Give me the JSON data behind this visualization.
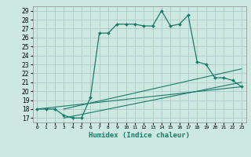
{
  "title": "",
  "xlabel": "Humidex (Indice chaleur)",
  "bg_color": "#cce8e0",
  "grid_color": "#aacccc",
  "line_color": "#1a7a6a",
  "xlim": [
    -0.5,
    23.5
  ],
  "ylim": [
    16.5,
    29.5
  ],
  "yticks": [
    17,
    18,
    19,
    20,
    21,
    22,
    23,
    24,
    25,
    26,
    27,
    28,
    29
  ],
  "xtick_labels": [
    "0",
    "1",
    "2",
    "3",
    "4",
    "5",
    "6",
    "7",
    "8",
    "9",
    "10",
    "11",
    "12",
    "13",
    "14",
    "15",
    "16",
    "17",
    "18",
    "19",
    "20",
    "21",
    "22",
    "23"
  ],
  "line1_x": [
    0,
    1,
    2,
    3,
    4,
    5,
    6,
    7,
    8,
    9,
    10,
    11,
    12,
    13,
    14,
    15,
    16,
    17,
    18,
    19,
    20,
    21,
    22,
    23
  ],
  "line1_y": [
    18,
    18,
    18,
    17.3,
    17,
    17,
    19.3,
    26.5,
    26.5,
    27.5,
    27.5,
    27.5,
    27.3,
    27.3,
    29.0,
    27.3,
    27.5,
    28.5,
    23.3,
    23.0,
    21.5,
    21.5,
    21.2,
    20.5
  ],
  "line2_x": [
    0,
    23
  ],
  "line2_y": [
    18.0,
    20.5
  ],
  "line3_x": [
    3,
    23
  ],
  "line3_y": [
    18.0,
    22.5
  ],
  "line4_x": [
    3,
    23
  ],
  "line4_y": [
    17.0,
    21.0
  ]
}
